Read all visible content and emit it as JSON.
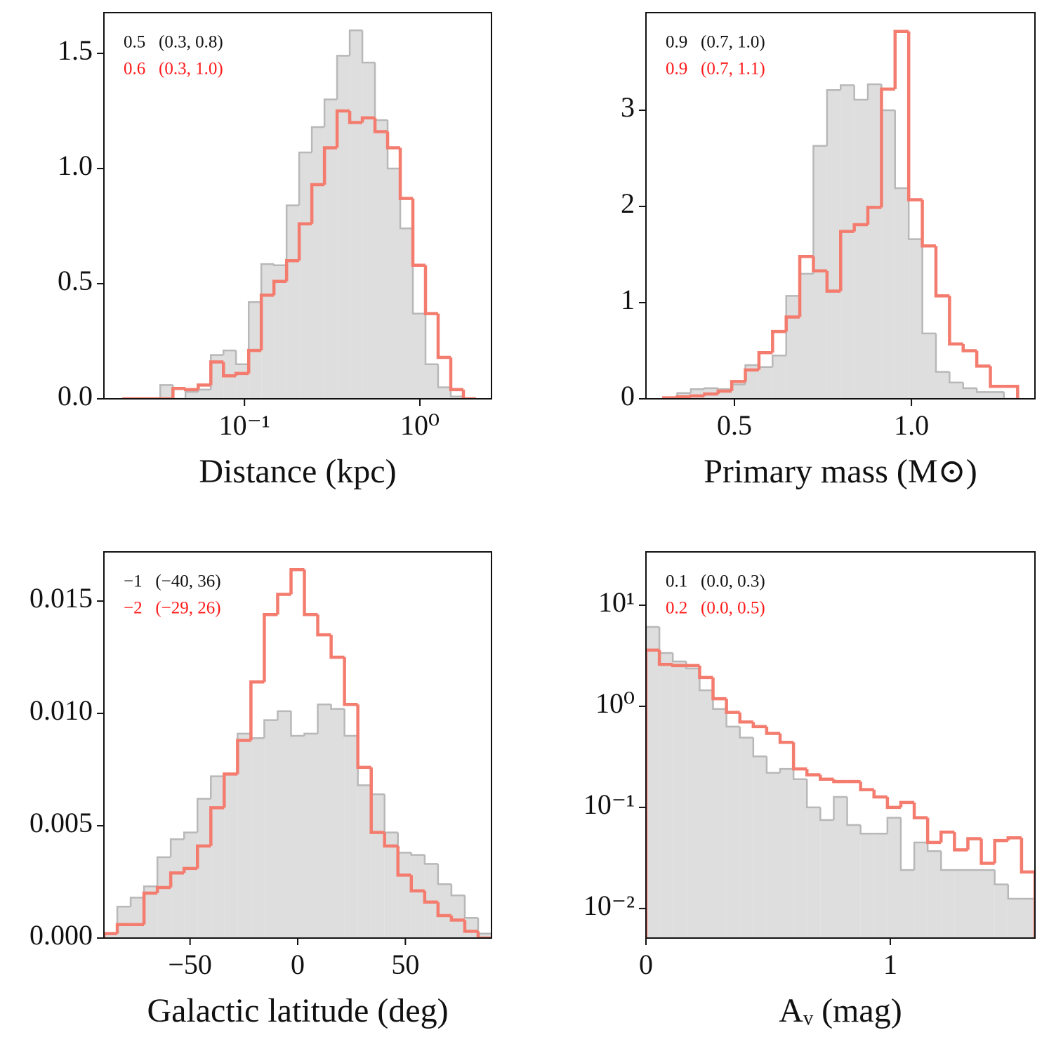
{
  "chart_data": [
    {
      "type": "histogram",
      "xlabel": "Distance (kpc)",
      "xscale": "log",
      "xlim": [
        0.0158,
        2.56
      ],
      "ylim": [
        0,
        1.677
      ],
      "xticks": [
        {
          "value": 0.1,
          "label": "10⁻¹"
        },
        {
          "value": 1,
          "label": "10⁰"
        }
      ],
      "yticks": [
        {
          "value": 0,
          "label": "0.0"
        },
        0.5,
        {
          "value": 1,
          "label": "1.0"
        },
        1.5
      ],
      "annotations": [
        {
          "text": "0.5   (0.3, 0.8)",
          "color": "#111111"
        },
        {
          "text": "0.6   (0.3, 1.0)",
          "color": "#ff1a1a"
        }
      ],
      "bins": [
        0.0201,
        0.0238,
        0.0281,
        0.0331,
        0.0391,
        0.0461,
        0.0545,
        0.0643,
        0.0759,
        0.0895,
        0.1057,
        0.1247,
        0.1472,
        0.1738,
        0.2051,
        0.2421,
        0.2858,
        0.3373,
        0.3981,
        0.4699,
        0.5546,
        0.6546,
        0.7727,
        0.912,
        1.0765,
        1.2706,
        1.4997,
        1.7701,
        2.0893
      ],
      "series": [
        {
          "histtype": "stepfilled",
          "color": "#b8b8b8",
          "fill": "#dedede",
          "values": [
            0,
            0,
            0,
            0.06,
            0,
            0.03,
            0.04,
            0.19,
            0.21,
            0.15,
            0.42,
            0.585,
            0.58,
            0.84,
            1.07,
            1.18,
            1.3,
            1.49,
            1.6,
            1.46,
            1.21,
            1.0,
            0.74,
            0.37,
            0.15,
            0.05,
            0.01,
            0
          ]
        },
        {
          "histtype": "step",
          "color": "#f47c6f",
          "values": [
            0,
            0,
            0,
            0,
            0.045,
            0.04,
            0.06,
            0.16,
            0.1,
            0.11,
            0.21,
            0.45,
            0.51,
            0.6,
            0.76,
            0.93,
            1.09,
            1.25,
            1.2,
            1.22,
            1.16,
            1.09,
            0.87,
            0.58,
            0.37,
            0.18,
            0.04,
            0
          ]
        }
      ]
    },
    {
      "type": "histogram",
      "xlabel": "Primary mass (M⊙)",
      "xlim": [
        0.25,
        1.349
      ],
      "ylim": [
        0,
        4.015
      ],
      "xticks": [
        0.5,
        {
          "value": 1,
          "label": "1.0"
        }
      ],
      "yticks": [
        0,
        1,
        2,
        3
      ],
      "annotations": [
        {
          "text": "0.9   (0.7, 1.0)",
          "color": "#111111"
        },
        {
          "text": "0.9   (0.7, 1.1)",
          "color": "#ff1a1a"
        }
      ],
      "bins": [
        0.3,
        0.3385,
        0.3769,
        0.4154,
        0.4538,
        0.4923,
        0.5308,
        0.5692,
        0.6077,
        0.6462,
        0.6846,
        0.7231,
        0.7615,
        0.8,
        0.8385,
        0.8769,
        0.9154,
        0.9538,
        0.9923,
        1.0308,
        1.0692,
        1.1077,
        1.1462,
        1.1846,
        1.2231,
        1.2615,
        1.3
      ],
      "series": [
        {
          "histtype": "stepfilled",
          "color": "#b8b8b8",
          "fill": "#dedede",
          "values": [
            0,
            0.06,
            0.1,
            0.11,
            0.1,
            0.15,
            0.35,
            0.33,
            0.45,
            1.07,
            1.3,
            2.63,
            3.21,
            3.26,
            3.11,
            3.27,
            3.0,
            2.19,
            1.66,
            0.68,
            0.28,
            0.17,
            0.11,
            0.07,
            0.07,
            0
          ]
        },
        {
          "histtype": "step",
          "color": "#f47c6f",
          "values": [
            0.01,
            0.02,
            0.03,
            0.05,
            0.08,
            0.18,
            0.3,
            0.48,
            0.7,
            0.85,
            1.48,
            1.33,
            1.12,
            1.74,
            1.81,
            1.99,
            3.22,
            3.82,
            2.07,
            1.59,
            1.07,
            0.57,
            0.5,
            0.34,
            0.13,
            0.13
          ]
        }
      ]
    },
    {
      "type": "histogram",
      "xlabel": "Galactic latitude (deg)",
      "xlim": [
        -90,
        90
      ],
      "ylim": [
        0,
        0.01719
      ],
      "xticks": [
        {
          "value": -50,
          "label": "−50"
        },
        0,
        50
      ],
      "yticks": [
        {
          "value": 0,
          "label": "0.000"
        },
        0.005,
        {
          "value": 0.01,
          "label": "0.010"
        },
        0.015
      ],
      "annotations": [
        {
          "text": "−1   (−40, 36)",
          "color": "#111111"
        },
        {
          "text": "−2   (−29, 26)",
          "color": "#ff1a1a"
        }
      ],
      "bins": [
        -90,
        -83.79,
        -77.59,
        -71.38,
        -65.17,
        -58.97,
        -52.76,
        -46.55,
        -40.34,
        -34.14,
        -27.93,
        -21.72,
        -15.52,
        -9.31,
        -3.1,
        3.1,
        9.31,
        15.52,
        21.72,
        27.93,
        34.14,
        40.34,
        46.55,
        52.76,
        58.97,
        65.17,
        71.38,
        77.59,
        83.79,
        90
      ],
      "series": [
        {
          "histtype": "stepfilled",
          "color": "#b8b8b8",
          "fill": "#dedede",
          "values": [
            0.0002,
            0.0014,
            0.0018,
            0.0023,
            0.0036,
            0.0044,
            0.0047,
            0.0062,
            0.0072,
            0.0073,
            0.0091,
            0.0089,
            0.0097,
            0.0101,
            0.009,
            0.0091,
            0.0104,
            0.0102,
            0.009,
            0.0068,
            0.0064,
            0.0047,
            0.0038,
            0.0037,
            0.0033,
            0.0024,
            0.0019,
            0.0009,
            0.0002
          ]
        },
        {
          "histtype": "step",
          "color": "#f47c6f",
          "values": [
            0.0002,
            0.0006,
            0.0006,
            0.002,
            0.00225,
            0.0029,
            0.0031,
            0.0041,
            0.0058,
            0.0073,
            0.0088,
            0.0114,
            0.0144,
            0.0153,
            0.0164,
            0.0144,
            0.0135,
            0.0125,
            0.0104,
            0.0076,
            0.0047,
            0.0041,
            0.0028,
            0.0021,
            0.0016,
            0.001,
            0.0008,
            0.0003,
            0
          ]
        }
      ]
    },
    {
      "type": "histogram",
      "xlabel": "Aᵥ (mag)",
      "yscale": "log",
      "xlim": [
        0,
        1.5921
      ],
      "ylim": [
        0.0051,
        33.7
      ],
      "xticks": [
        0,
        1
      ],
      "yticks": [
        {
          "value": 0.01,
          "label": "10⁻²"
        },
        {
          "value": 0.1,
          "label": "10⁻¹"
        },
        {
          "value": 1,
          "label": "10⁰"
        },
        {
          "value": 10,
          "label": "10¹"
        }
      ],
      "annotations": [
        {
          "text": "0.1   (0.0, 0.3)",
          "color": "#111111"
        },
        {
          "text": "0.2   (0.0, 0.5)",
          "color": "#ff1a1a"
        }
      ],
      "bins": [
        0,
        0.0549,
        0.1098,
        0.1647,
        0.2196,
        0.2745,
        0.3294,
        0.3843,
        0.4392,
        0.4941,
        0.549,
        0.6039,
        0.6588,
        0.7137,
        0.7686,
        0.8235,
        0.8784,
        0.9333,
        0.9882,
        1.0431,
        1.098,
        1.1529,
        1.2078,
        1.2627,
        1.3176,
        1.3725,
        1.4274,
        1.4823,
        1.5372,
        1.5921
      ],
      "series": [
        {
          "histtype": "stepfilled",
          "color": "#b8b8b8",
          "fill": "#dedede",
          "values": [
            6.1,
            3.37,
            2.78,
            2.37,
            1.44,
            0.94,
            0.63,
            0.49,
            0.32,
            0.22,
            0.24,
            0.19,
            0.1,
            0.075,
            0.127,
            0.067,
            0.055,
            0.055,
            0.079,
            0.024,
            0.045,
            0.037,
            0.024,
            0.024,
            0.024,
            0.024,
            0.0173,
            0.0125,
            0.0125
          ]
        },
        {
          "histtype": "step",
          "color": "#f47c6f",
          "values": [
            3.6,
            2.6,
            2.53,
            2.53,
            1.93,
            1.19,
            0.87,
            0.7,
            0.63,
            0.54,
            0.44,
            0.24,
            0.21,
            0.19,
            0.18,
            0.18,
            0.15,
            0.127,
            0.1,
            0.112,
            0.079,
            0.045,
            0.057,
            0.038,
            0.049,
            0.028,
            0.047,
            0.05,
            0.023
          ]
        }
      ]
    }
  ]
}
